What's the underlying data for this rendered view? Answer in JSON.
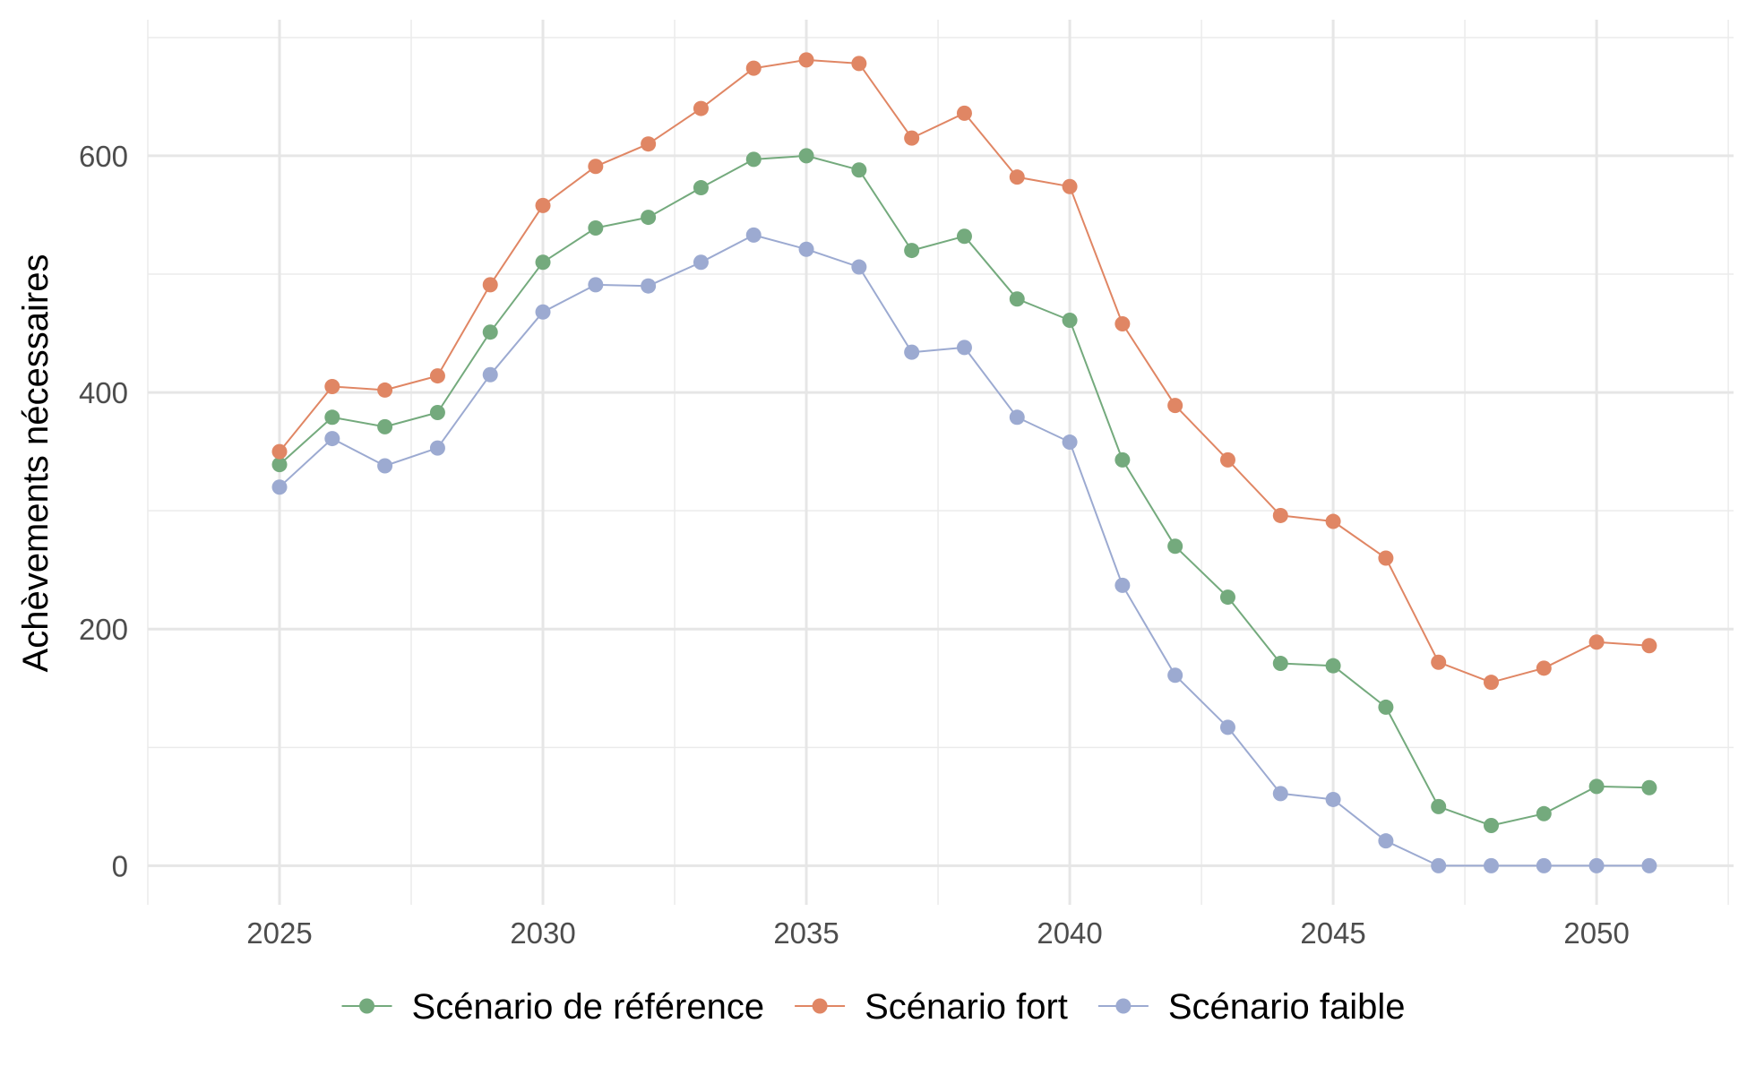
{
  "chart_data": {
    "type": "line",
    "title": "",
    "xlabel": "",
    "ylabel": "Achèvements nécessaires",
    "x": [
      2025,
      2026,
      2027,
      2028,
      2029,
      2030,
      2031,
      2032,
      2033,
      2034,
      2035,
      2036,
      2037,
      2038,
      2039,
      2040,
      2041,
      2042,
      2043,
      2044,
      2045,
      2046,
      2047,
      2048,
      2049,
      2050,
      2051
    ],
    "xlim": [
      2022.5,
      2052.6
    ],
    "ylim": [
      -33,
      715
    ],
    "x_ticks": [
      2025,
      2030,
      2035,
      2040,
      2045,
      2050
    ],
    "x_tick_labels": [
      "2025",
      "2030",
      "2035",
      "2040",
      "2045",
      "2050"
    ],
    "y_ticks": [
      0,
      200,
      400,
      600
    ],
    "y_tick_labels": [
      "0",
      "200",
      "400",
      "600"
    ],
    "grid": true,
    "legend_position": "bottom",
    "series": [
      {
        "name": "Scénario de référence",
        "color": "#74aa7d",
        "values": [
          339,
          379,
          371,
          383,
          451,
          510,
          539,
          548,
          573,
          597,
          600,
          588,
          520,
          532,
          479,
          461,
          343,
          270,
          227,
          171,
          169,
          134,
          50,
          34,
          44,
          67,
          66
        ]
      },
      {
        "name": "Scénario fort",
        "color": "#e08664",
        "values": [
          350,
          405,
          402,
          414,
          491,
          558,
          591,
          610,
          640,
          674,
          681,
          678,
          615,
          636,
          582,
          574,
          458,
          389,
          343,
          296,
          291,
          260,
          172,
          155,
          167,
          189,
          186
        ]
      },
      {
        "name": "Scénario faible",
        "color": "#9caad1",
        "values": [
          320,
          361,
          338,
          353,
          415,
          468,
          491,
          490,
          510,
          533,
          521,
          506,
          434,
          438,
          379,
          358,
          237,
          161,
          117,
          61,
          56,
          21,
          0,
          0,
          0,
          0,
          0
        ]
      }
    ]
  }
}
